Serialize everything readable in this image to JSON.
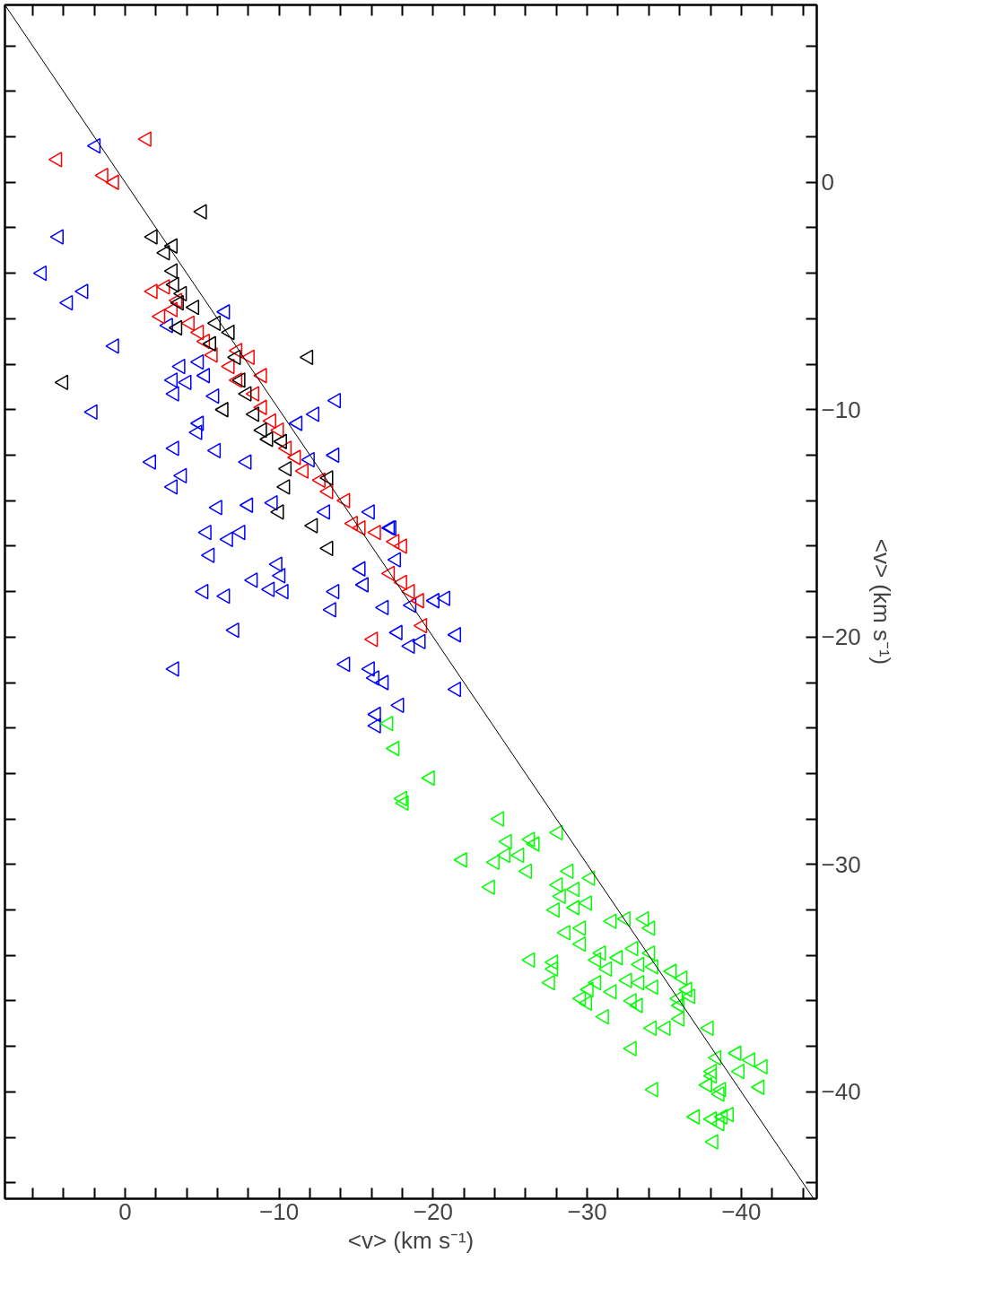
{
  "chart_data": {
    "type": "scatter",
    "xlabel": "<v> (km s⁻¹)",
    "ylabel": "<v> (km s⁻¹)",
    "xlim": [
      7.8,
      -44.9
    ],
    "ylim": [
      -44.7,
      7.8
    ],
    "xticks": [
      {
        "value": 6,
        "label": null
      },
      {
        "value": 4,
        "label": null
      },
      {
        "value": 2,
        "label": null
      },
      0,
      {
        "value": -2,
        "label": null
      },
      {
        "value": -4,
        "label": null
      },
      {
        "value": -6,
        "label": null
      },
      {
        "value": -8,
        "label": null
      },
      -10,
      {
        "value": -12,
        "label": null
      },
      {
        "value": -14,
        "label": null
      },
      {
        "value": -16,
        "label": null
      },
      {
        "value": -18,
        "label": null
      },
      -20,
      {
        "value": -22,
        "label": null
      },
      {
        "value": -24,
        "label": null
      },
      {
        "value": -26,
        "label": null
      },
      {
        "value": -28,
        "label": null
      },
      -30,
      {
        "value": -32,
        "label": null
      },
      {
        "value": -34,
        "label": null
      },
      {
        "value": -36,
        "label": null
      },
      {
        "value": -38,
        "label": null
      },
      -40,
      {
        "value": -42,
        "label": null
      },
      {
        "value": -44,
        "label": null
      }
    ],
    "yticks": [
      {
        "value": 6,
        "label": null
      },
      {
        "value": 4,
        "label": null
      },
      {
        "value": 2,
        "label": null
      },
      0,
      {
        "value": -2,
        "label": null
      },
      {
        "value": -4,
        "label": null
      },
      {
        "value": -6,
        "label": null
      },
      {
        "value": -8,
        "label": null
      },
      -10,
      {
        "value": -12,
        "label": null
      },
      {
        "value": -14,
        "label": null
      },
      {
        "value": -16,
        "label": null
      },
      {
        "value": -18,
        "label": null
      },
      -20,
      {
        "value": -22,
        "label": null
      },
      {
        "value": -24,
        "label": null
      },
      {
        "value": -26,
        "label": null
      },
      {
        "value": -28,
        "label": null
      },
      -30,
      {
        "value": -32,
        "label": null
      },
      {
        "value": -34,
        "label": null
      },
      {
        "value": -36,
        "label": null
      },
      {
        "value": -38,
        "label": null
      },
      -40,
      {
        "value": -42,
        "label": null
      },
      {
        "value": -44,
        "label": null
      }
    ],
    "marker": "triangle",
    "grid": false,
    "series": [
      {
        "color": "#0000ff",
        "x": [
          1.9,
          4.3,
          5.4,
          2.7,
          3.7,
          0.7,
          -2.8,
          -6.5,
          2.1,
          -3.6,
          -4.8,
          -3.1,
          -4.0,
          -3.2,
          -5.2,
          -5.8,
          -13.7,
          -4.8,
          -4.7,
          -11.2,
          -12.3,
          -3.2,
          -5.9,
          -7.9,
          -1.7,
          -3.7,
          -3.1,
          -13.6,
          -12.0,
          -6.0,
          -8.0,
          -9.6,
          -13.0,
          -15.9,
          -17.2,
          -5.3,
          -6.7,
          -7.5,
          -5.5,
          -9.9,
          -10.1,
          -8.3,
          -5.1,
          -6.5,
          -9.4,
          -10.3,
          -13.6,
          -13.4,
          -7.1,
          -3.2,
          -14.3,
          -15.9,
          -16.2,
          -16.8,
          -17.8,
          -16.3,
          -16.3,
          -21.5,
          -21.5,
          -20.1,
          -20.8,
          -17.7,
          -18.5,
          -19.2,
          -16.8,
          -17.3,
          -17.6,
          -15.3,
          -15.5,
          -18.6
        ],
        "values": [
          1.6,
          -2.4,
          -4.0,
          -4.8,
          -5.3,
          -7.2,
          -6.3,
          -5.7,
          -10.1,
          -8.1,
          -7.9,
          -8.7,
          -8.8,
          -9.3,
          -8.5,
          -9.4,
          -9.6,
          -10.6,
          -11.0,
          -10.6,
          -10.2,
          -11.7,
          -11.8,
          -12.3,
          -12.3,
          -12.9,
          -13.4,
          -12.0,
          -12.2,
          -14.3,
          -14.2,
          -14.1,
          -14.5,
          -14.5,
          -15.2,
          -15.4,
          -15.7,
          -15.4,
          -16.4,
          -16.8,
          -17.3,
          -17.5,
          -18.0,
          -18.2,
          -17.9,
          -18.0,
          -18.0,
          -18.8,
          -19.7,
          -21.4,
          -21.2,
          -21.4,
          -21.8,
          -22.0,
          -23.0,
          -23.4,
          -23.9,
          -19.9,
          -22.3,
          -18.4,
          -18.3,
          -19.8,
          -20.4,
          -20.2,
          -18.7,
          -15.2,
          -16.6,
          -17.0,
          -17.7,
          -18.6
        ]
      },
      {
        "color": "#ff0000",
        "x": [
          4.4,
          1.4,
          0.7,
          -1.4,
          -1.8,
          -2.3,
          -3.1,
          -2.6,
          -3.4,
          -4.2,
          -4.8,
          -5.2,
          -5.7,
          -6.8,
          -7.3,
          -8.4,
          -8.9,
          -9.5,
          -10.0,
          -10.5,
          -11.1,
          -11.6,
          -12.7,
          -13.2,
          -14.3,
          -14.8,
          -15.3,
          -16.3,
          -17.5,
          -18.0,
          -17.2,
          -18.0,
          -18.5,
          -19.1,
          -19.3,
          -16.1,
          -7.3,
          -8.1,
          -8.9
        ],
        "values": [
          1.0,
          0.3,
          0.0,
          1.9,
          -4.8,
          -5.9,
          -5.6,
          -4.6,
          -5.2,
          -6.2,
          -6.6,
          -7.0,
          -7.6,
          -8.1,
          -8.7,
          -9.3,
          -9.9,
          -10.5,
          -10.9,
          -11.7,
          -12.1,
          -12.7,
          -13.1,
          -13.6,
          -14.0,
          -15.0,
          -15.2,
          -15.4,
          -15.8,
          -16.0,
          -17.2,
          -17.6,
          -18.0,
          -18.4,
          -19.5,
          -20.1,
          -7.4,
          -7.7,
          -8.5
        ]
      },
      {
        "color": "#000000",
        "x": [
          -5.0,
          -1.8,
          -3.1,
          -2.6,
          -3.1,
          -3.2,
          -3.7,
          -3.5,
          -4.5,
          -3.4,
          -5.9,
          -5.6,
          -11.9,
          4.0,
          -7.2,
          -7.5,
          -6.4,
          -8.4,
          -9.3,
          -10.2,
          -10.5,
          -13.2,
          -12.2,
          -10.0,
          -10.4,
          -13.2,
          -6.8,
          -7.9,
          -8.9
        ],
        "values": [
          -1.3,
          -2.4,
          -2.8,
          -3.1,
          -3.9,
          -4.5,
          -4.9,
          -5.3,
          -5.5,
          -6.4,
          -6.2,
          -7.1,
          -7.7,
          -8.8,
          -7.7,
          -8.7,
          -10.0,
          -10.2,
          -11.3,
          -11.4,
          -12.6,
          -13.0,
          -15.1,
          -14.5,
          -13.4,
          -16.1,
          -6.6,
          -9.3,
          -10.9
        ]
      },
      {
        "color": "#00ff00",
        "x": [
          -17.1,
          -17.5,
          -19.8,
          -18.0,
          -18.1,
          -24.3,
          -24.8,
          -26.3,
          -26.6,
          -28.1,
          -21.9,
          -24.0,
          -24.7,
          -25.6,
          -26.1,
          -23.7,
          -28.8,
          -30.2,
          -28.1,
          -29.2,
          -28.3,
          -30.0,
          -29.2,
          -27.9,
          -31.6,
          -32.5,
          -33.7,
          -34.1,
          -28.6,
          -29.6,
          -29.6,
          -30.9,
          -32.0,
          -33.0,
          -34.1,
          -26.3,
          -27.8,
          -27.8,
          -30.6,
          -31.3,
          -33.4,
          -34.3,
          -35.5,
          -36.2,
          -36.5,
          -36.7,
          -35.9,
          -27.6,
          -30.6,
          -32.6,
          -33.4,
          -34.3,
          -30.1,
          -31.6,
          -29.6,
          -30.0,
          -32.9,
          -33.3,
          -36.0,
          -31.1,
          -36.0,
          -34.2,
          -35.1,
          -37.9,
          -32.9,
          -38.4,
          -39.7,
          -40.6,
          -41.4,
          -39.9,
          -38.1,
          -38.1,
          -37.8,
          -38.7,
          -38.6,
          -41.2,
          -34.3,
          -37.0,
          -38.1,
          -38.8,
          -39.2,
          -38.6,
          -38.2
        ],
        "values": [
          -23.8,
          -24.9,
          -26.2,
          -27.1,
          -27.3,
          -28.0,
          -29.0,
          -28.9,
          -29.1,
          -28.6,
          -29.8,
          -29.9,
          -29.6,
          -29.6,
          -30.3,
          -31.0,
          -30.3,
          -30.6,
          -30.9,
          -31.1,
          -31.4,
          -31.7,
          -31.9,
          -32.0,
          -32.5,
          -32.4,
          -32.4,
          -32.8,
          -33.0,
          -32.8,
          -33.5,
          -33.9,
          -34.1,
          -33.7,
          -33.9,
          -34.2,
          -34.3,
          -34.6,
          -34.2,
          -34.6,
          -34.4,
          -34.5,
          -34.7,
          -35.0,
          -35.5,
          -35.8,
          -35.9,
          -35.2,
          -35.2,
          -35.1,
          -35.2,
          -35.4,
          -35.5,
          -35.6,
          -35.9,
          -36.1,
          -36.0,
          -36.2,
          -36.2,
          -36.7,
          -36.8,
          -37.2,
          -37.2,
          -37.2,
          -38.1,
          -38.5,
          -38.3,
          -38.6,
          -38.9,
          -39.1,
          -39.1,
          -39.3,
          -39.7,
          -39.9,
          -40.1,
          -39.8,
          -39.9,
          -41.1,
          -41.2,
          -41.1,
          -41.0,
          -41.4,
          -42.2
        ]
      },
      {
        "type": "line",
        "marker": "none",
        "color": "#000000",
        "x": [
          7.8,
          -44.7
        ],
        "values": [
          7.8,
          -44.7
        ]
      }
    ]
  }
}
